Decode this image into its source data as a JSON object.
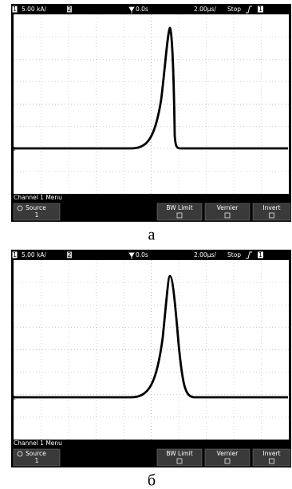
{
  "panels": [
    {
      "header": {
        "channel": "1",
        "scale": "5.00 kA/",
        "channel2": "2",
        "trigger_time": "0.0s",
        "timebase": "2.00µs/",
        "status": "Stop",
        "trigger_channel": "1"
      },
      "ground_marker": "1",
      "menu": {
        "title": "Channel 1 Menu",
        "source_label": "Source",
        "source_value": "1",
        "buttons": [
          "BW Limit",
          "Vernier",
          "Invert"
        ]
      },
      "caption": "а"
    },
    {
      "header": {
        "channel": "1",
        "scale": "5.00 kA/",
        "channel2": "2",
        "trigger_time": "0.0s",
        "timebase": "2.00µs/",
        "status": "Stop",
        "trigger_channel": "1"
      },
      "ground_marker": "1",
      "menu": {
        "title": "Channel 1 Menu",
        "source_label": "Source",
        "source_value": "1",
        "buttons": [
          "BW Limit",
          "Vernier",
          "Invert"
        ]
      },
      "caption": "б"
    }
  ]
}
